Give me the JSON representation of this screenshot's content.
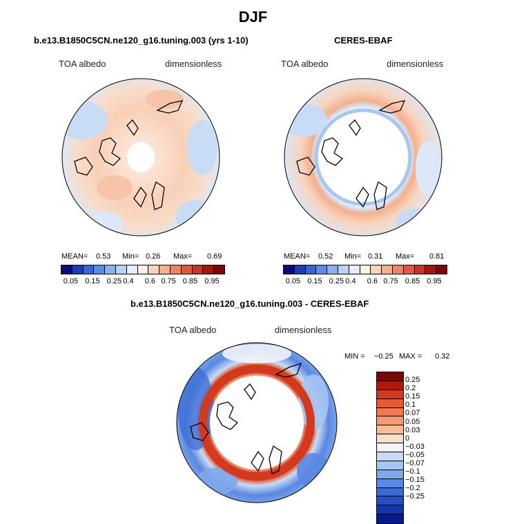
{
  "figure": {
    "title": "DJF"
  },
  "panels": {
    "model": {
      "title": "b.e13.B1850C5CN.ne120_g16.tuning.003 (yrs 1-10)",
      "left_label": "TOA albedo",
      "right_label": "dimensionless",
      "mean_label": "MEAN=",
      "mean": "0.53",
      "min_label": "Min=",
      "min": "0.26",
      "max_label": "Max=",
      "max": "0.69"
    },
    "obs": {
      "title": "CERES-EBAF",
      "left_label": "TOA albedo",
      "right_label": "dimensionless",
      "mean_label": "MEAN=",
      "mean": "0.52",
      "min_label": "Min=",
      "min": "0.31",
      "max_label": "Max=",
      "max": "0.81"
    },
    "diff": {
      "title": "b.e13.B1850C5CN.ne120_g16.tuning.003 - CERES-EBAF",
      "left_label": "TOA albedo",
      "right_label": "dimensionless",
      "min_label": "MIN =",
      "min": "−0.25",
      "max_label": "MAX =",
      "max": "0.32"
    }
  },
  "colorbar_horizontal": {
    "colors": [
      "#0a0a7a",
      "#1f3bb4",
      "#3366d6",
      "#5b8de6",
      "#8ab0ef",
      "#bad2f5",
      "#e4eefa",
      "#fdf1e8",
      "#f8d4bd",
      "#f3b08f",
      "#ec8465",
      "#e2573f",
      "#cc3320",
      "#a5150f",
      "#7c0606"
    ],
    "labels": [
      "0.05",
      "0.15",
      "0.25",
      "0.4",
      "0.6",
      "0.75",
      "0.85",
      "0.95"
    ]
  },
  "colorbar_vertical": {
    "colors": [
      "#7c0606",
      "#b2170f",
      "#d23a1f",
      "#e85a35",
      "#f07a52",
      "#f49a73",
      "#f7bb9c",
      "#fadfcd",
      "#f2f4f8",
      "#c9dcf6",
      "#a6c4f2",
      "#80a7ea",
      "#5a88e2",
      "#3a6bd6",
      "#2450c5",
      "#1434a8",
      "#071a8a"
    ],
    "labels": [
      "0.25",
      "0.2",
      "0.15",
      "0.1",
      "0.07",
      "0.05",
      "0.03",
      "0",
      "−0.03",
      "−0.05",
      "−0.07",
      "−0.1",
      "−0.15",
      "−0.2",
      "−0.25"
    ]
  }
}
